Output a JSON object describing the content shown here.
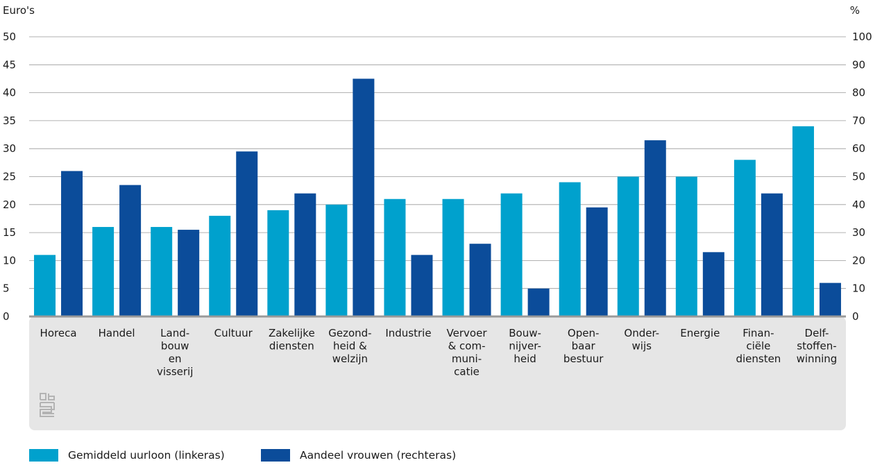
{
  "chart_data": {
    "type": "bar",
    "left_axis_label": "Euro's",
    "right_axis_label": "%",
    "ylim_left": [
      0,
      50
    ],
    "ylim_right": [
      0,
      100
    ],
    "yticks_left": [
      0,
      5,
      10,
      15,
      20,
      25,
      30,
      35,
      40,
      45,
      50
    ],
    "yticks_right": [
      0,
      10,
      20,
      30,
      40,
      50,
      60,
      70,
      80,
      90,
      100
    ],
    "grid": "horizontal",
    "legend_position": "bottom-left",
    "categories": [
      [
        "Horeca"
      ],
      [
        "Handel"
      ],
      [
        "Land-",
        "bouw",
        "en",
        "visserij"
      ],
      [
        "Cultuur"
      ],
      [
        "Zakelijke",
        "diensten"
      ],
      [
        "Gezond-",
        "heid &",
        "welzijn"
      ],
      [
        "Industrie"
      ],
      [
        "Vervoer",
        "& com-",
        "muni-",
        "catie"
      ],
      [
        "Bouw-",
        "nijver-",
        "heid"
      ],
      [
        "Open-",
        "baar",
        "bestuur"
      ],
      [
        "Onder-",
        "wijs"
      ],
      [
        "Energie"
      ],
      [
        "Finan-",
        "ciële",
        "diensten"
      ],
      [
        "Delf-",
        "stoffen-",
        "winning"
      ]
    ],
    "series": [
      {
        "name": "Gemiddeld uurloon (linkeras)",
        "axis": "left",
        "color": "#00a1cd",
        "values": [
          11,
          16,
          16,
          18,
          19,
          20,
          21,
          21,
          22,
          24,
          25,
          25,
          28,
          34
        ]
      },
      {
        "name": "Aandeel vrouwen (rechteras)",
        "axis": "right",
        "color": "#0b4c9a",
        "values": [
          52,
          47,
          31,
          59,
          44,
          85,
          22,
          26,
          10,
          39,
          63,
          23,
          44,
          12
        ]
      }
    ]
  },
  "colors": {
    "grid": "#999999",
    "baseline": "#999999",
    "label_band": "#e6e6e6",
    "logo": "#b3b3b3"
  },
  "logo": {
    "icon": "cbs-logo-icon"
  }
}
